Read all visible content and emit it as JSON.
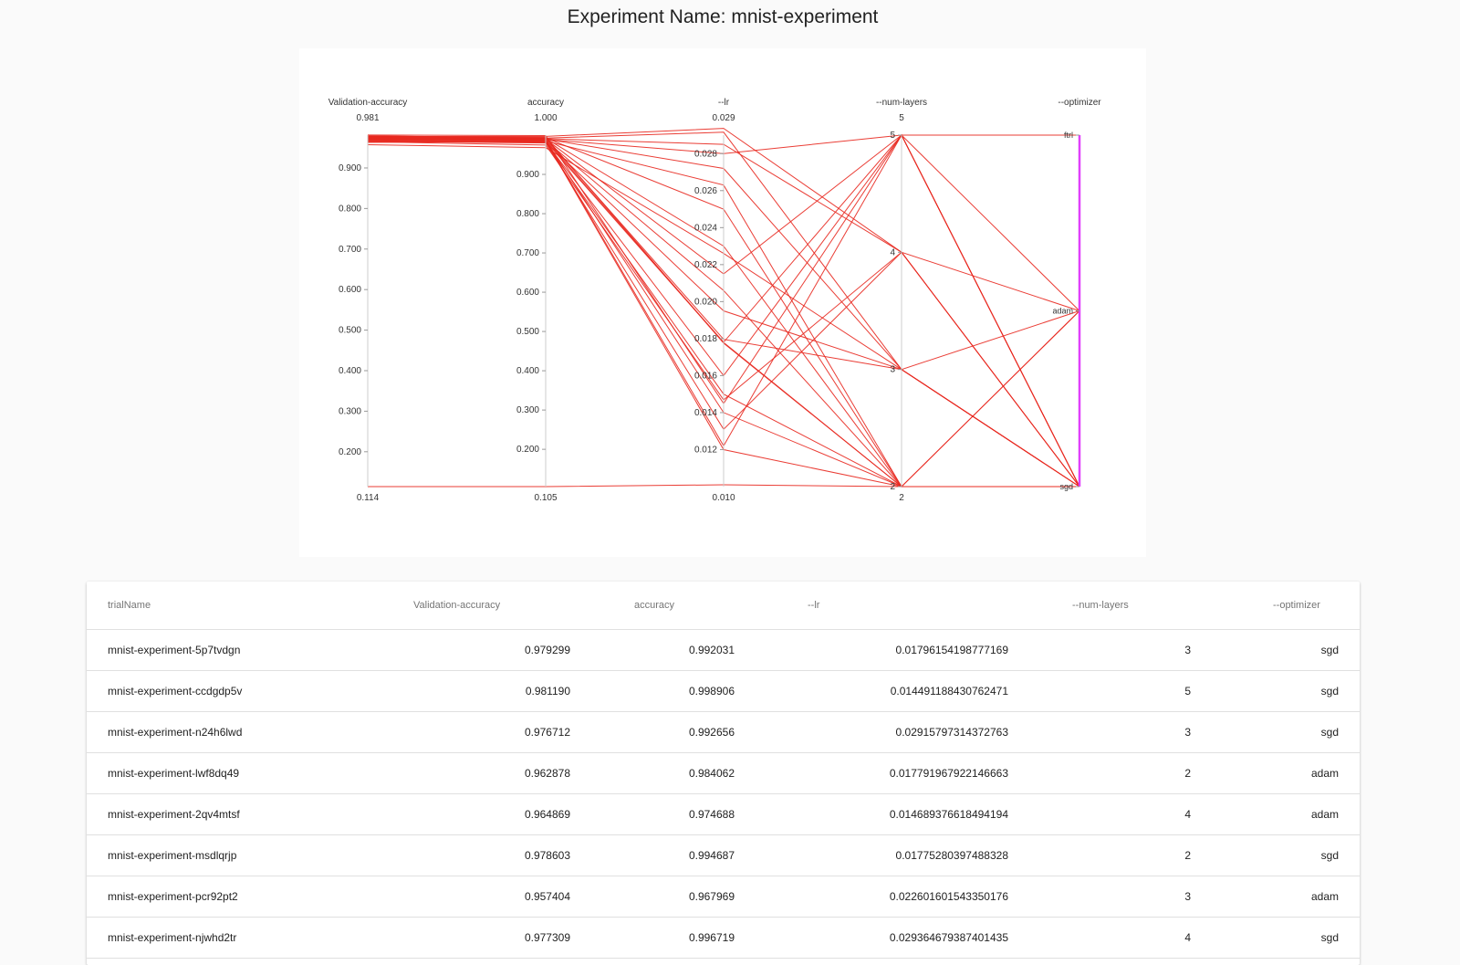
{
  "page": {
    "title": "Experiment Name: mnist-experiment"
  },
  "chart_data": {
    "type": "parallel_coordinates",
    "axes": [
      {
        "label": "Validation-accuracy",
        "min": 0.114,
        "max": 0.981,
        "min_label": "0.114",
        "max_label": "0.981",
        "ticks": [
          "0.900",
          "0.800",
          "0.700",
          "0.600",
          "0.500",
          "0.400",
          "0.300",
          "0.200"
        ],
        "tick_values": [
          0.9,
          0.8,
          0.7,
          0.6,
          0.5,
          0.4,
          0.3,
          0.2
        ]
      },
      {
        "label": "accuracy",
        "min": 0.105,
        "max": 1.0,
        "min_label": "0.105",
        "max_label": "1.000",
        "ticks": [
          "0.900",
          "0.800",
          "0.700",
          "0.600",
          "0.500",
          "0.400",
          "0.300",
          "0.200"
        ],
        "tick_values": [
          0.9,
          0.8,
          0.7,
          0.6,
          0.5,
          0.4,
          0.3,
          0.2
        ]
      },
      {
        "label": "--lr",
        "min": 0.01,
        "max": 0.029,
        "min_label": "0.010",
        "max_label": "0.029",
        "ticks": [
          "0.028",
          "0.026",
          "0.024",
          "0.022",
          "0.020",
          "0.018",
          "0.016",
          "0.014",
          "0.012"
        ],
        "tick_values": [
          0.028,
          0.026,
          0.024,
          0.022,
          0.02,
          0.018,
          0.016,
          0.014,
          0.012
        ]
      },
      {
        "label": "--num-layers",
        "min": 2,
        "max": 5,
        "min_label": "2",
        "max_label": "5",
        "ticks": [
          "5",
          "4",
          "3",
          "2"
        ],
        "tick_values": [
          5,
          4,
          3,
          2
        ]
      },
      {
        "label": "--optimizer",
        "categorical": true,
        "categories": [
          "sgd",
          "adam",
          "ftrl"
        ]
      }
    ],
    "series": [
      {
        "values": [
          0.979299,
          0.992031,
          0.017962,
          3,
          "sgd"
        ]
      },
      {
        "values": [
          0.98119,
          0.998906,
          0.014491,
          5,
          "sgd"
        ]
      },
      {
        "values": [
          0.976712,
          0.992656,
          0.029158,
          3,
          "sgd"
        ]
      },
      {
        "values": [
          0.962878,
          0.984062,
          0.017792,
          2,
          "adam"
        ]
      },
      {
        "values": [
          0.964869,
          0.974688,
          0.014689,
          4,
          "adam"
        ]
      },
      {
        "values": [
          0.978603,
          0.994687,
          0.017753,
          2,
          "sgd"
        ]
      },
      {
        "values": [
          0.957404,
          0.967969,
          0.022602,
          3,
          "adam"
        ]
      },
      {
        "values": [
          0.977309,
          0.996719,
          0.029365,
          4,
          "sgd"
        ]
      },
      {
        "values": [
          0.114,
          0.105,
          0.0101,
          2,
          "sgd"
        ]
      },
      {
        "values": [
          0.975,
          0.99,
          0.0215,
          5,
          "sgd"
        ]
      },
      {
        "values": [
          0.973,
          0.988,
          0.0122,
          5,
          "sgd"
        ]
      },
      {
        "values": [
          0.971,
          0.985,
          0.0263,
          2,
          "sgd"
        ]
      },
      {
        "values": [
          0.978,
          0.993,
          0.025,
          2,
          "sgd"
        ]
      },
      {
        "values": [
          0.974,
          0.989,
          0.028,
          5,
          "ftrl"
        ]
      },
      {
        "values": [
          0.97,
          0.986,
          0.012,
          2,
          "sgd"
        ]
      },
      {
        "values": [
          0.972,
          0.987,
          0.014,
          2,
          "sgd"
        ]
      },
      {
        "values": [
          0.976,
          0.991,
          0.0285,
          4,
          "sgd"
        ]
      },
      {
        "values": [
          0.969,
          0.983,
          0.0195,
          3,
          "sgd"
        ]
      },
      {
        "values": [
          0.968,
          0.982,
          0.016,
          5,
          "adam"
        ]
      },
      {
        "values": [
          0.977,
          0.992,
          0.023,
          2,
          "sgd"
        ]
      },
      {
        "values": [
          0.966,
          0.98,
          0.015,
          2,
          "sgd"
        ]
      },
      {
        "values": [
          0.975,
          0.99,
          0.0272,
          3,
          "sgd"
        ]
      },
      {
        "values": [
          0.973,
          0.988,
          0.0178,
          5,
          "sgd"
        ]
      },
      {
        "values": [
          0.971,
          0.986,
          0.0206,
          2,
          "adam"
        ]
      },
      {
        "values": [
          0.967,
          0.981,
          0.0131,
          4,
          "sgd"
        ]
      }
    ],
    "line_color": "#e8281f",
    "optimizer_axis_color": "#e040fb"
  },
  "table": {
    "columns": [
      "trialName",
      "Validation-accuracy",
      "accuracy",
      "--lr",
      "--num-layers",
      "--optimizer"
    ],
    "rows": [
      {
        "trialName": "mnist-experiment-5p7tvdgn",
        "val_acc": "0.979299",
        "acc": "0.992031",
        "lr": "0.01796154198777169",
        "num_layers": "3",
        "optimizer": "sgd"
      },
      {
        "trialName": "mnist-experiment-ccdgdp5v",
        "val_acc": "0.981190",
        "acc": "0.998906",
        "lr": "0.014491188430762471",
        "num_layers": "5",
        "optimizer": "sgd"
      },
      {
        "trialName": "mnist-experiment-n24h6lwd",
        "val_acc": "0.976712",
        "acc": "0.992656",
        "lr": "0.02915797314372763",
        "num_layers": "3",
        "optimizer": "sgd"
      },
      {
        "trialName": "mnist-experiment-lwf8dq49",
        "val_acc": "0.962878",
        "acc": "0.984062",
        "lr": "0.017791967922146663",
        "num_layers": "2",
        "optimizer": "adam"
      },
      {
        "trialName": "mnist-experiment-2qv4mtsf",
        "val_acc": "0.964869",
        "acc": "0.974688",
        "lr": "0.014689376618494194",
        "num_layers": "4",
        "optimizer": "adam"
      },
      {
        "trialName": "mnist-experiment-msdlqrjp",
        "val_acc": "0.978603",
        "acc": "0.994687",
        "lr": "0.01775280397488328",
        "num_layers": "2",
        "optimizer": "sgd"
      },
      {
        "trialName": "mnist-experiment-pcr92pt2",
        "val_acc": "0.957404",
        "acc": "0.967969",
        "lr": "0.022601601543350176",
        "num_layers": "3",
        "optimizer": "adam"
      },
      {
        "trialName": "mnist-experiment-njwhd2tr",
        "val_acc": "0.977309",
        "acc": "0.996719",
        "lr": "0.029364679387401435",
        "num_layers": "4",
        "optimizer": "sgd"
      }
    ]
  }
}
